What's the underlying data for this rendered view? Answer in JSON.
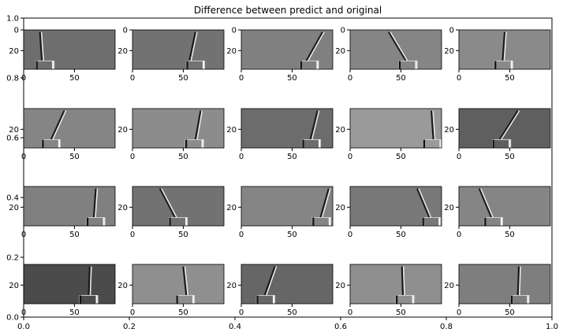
{
  "chart_data": {
    "type": "image_grid",
    "title": "Difference between predict and original",
    "outer_axes": {
      "x_ticks": [
        "0.0",
        "0.2",
        "0.4",
        "0.6",
        "0.8",
        "1.0"
      ],
      "y_ticks": [
        "0.0",
        "0.2",
        "0.4",
        "0.6",
        "0.8",
        "1.0"
      ],
      "xlim": [
        0,
        1
      ],
      "ylim": [
        0,
        1
      ]
    },
    "subplot_axes": {
      "x_ticks": [
        "0",
        "50"
      ],
      "y_ticks": [
        "0",
        "20"
      ],
      "y_ticks_top_row": [
        "0",
        "20"
      ],
      "y_ticks_lower_rows": [
        "20"
      ],
      "xlim": [
        0,
        90
      ],
      "ylim": [
        38,
        0
      ]
    },
    "rows": 4,
    "cols": 5,
    "panels": [
      {
        "bg": "#6e6e6e",
        "stick_base_x": 18,
        "stick_top_x": 16,
        "base_x": 12
      },
      {
        "bg": "#727272",
        "stick_base_x": 56,
        "stick_top_x": 62,
        "base_x": 53
      },
      {
        "bg": "#808080",
        "stick_base_x": 64,
        "stick_top_x": 80,
        "base_x": 58
      },
      {
        "bg": "#858585",
        "stick_base_x": 55,
        "stick_top_x": 38,
        "base_x": 48
      },
      {
        "bg": "#8a8a8a",
        "stick_base_x": 43,
        "stick_top_x": 45,
        "base_x": 35
      },
      {
        "bg": "#858585",
        "stick_base_x": 27,
        "stick_top_x": 40,
        "base_x": 18
      },
      {
        "bg": "#8c8c8c",
        "stick_base_x": 62,
        "stick_top_x": 67,
        "base_x": 52
      },
      {
        "bg": "#6c6c6c",
        "stick_base_x": 68,
        "stick_top_x": 75,
        "base_x": 60
      },
      {
        "bg": "#9a9a9a",
        "stick_base_x": 82,
        "stick_top_x": 80,
        "base_x": 72
      },
      {
        "bg": "#5f5f5f",
        "stick_base_x": 40,
        "stick_top_x": 58,
        "base_x": 33
      },
      {
        "bg": "#808080",
        "stick_base_x": 69,
        "stick_top_x": 71,
        "base_x": 62
      },
      {
        "bg": "#727272",
        "stick_base_x": 42,
        "stick_top_x": 27,
        "base_x": 36
      },
      {
        "bg": "#858585",
        "stick_base_x": 78,
        "stick_top_x": 86,
        "base_x": 70
      },
      {
        "bg": "#787878",
        "stick_base_x": 78,
        "stick_top_x": 66,
        "base_x": 71
      },
      {
        "bg": "#858585",
        "stick_base_x": 32,
        "stick_top_x": 20,
        "base_x": 25
      },
      {
        "bg": "#4b4b4b",
        "stick_base_x": 64,
        "stick_top_x": 65,
        "base_x": 55
      },
      {
        "bg": "#8f8f8f",
        "stick_base_x": 53,
        "stick_top_x": 50,
        "base_x": 43
      },
      {
        "bg": "#666666",
        "stick_base_x": 23,
        "stick_top_x": 33,
        "base_x": 15
      },
      {
        "bg": "#8f8f8f",
        "stick_base_x": 52,
        "stick_top_x": 51,
        "base_x": 45
      },
      {
        "bg": "#7e7e7e",
        "stick_base_x": 58,
        "stick_top_x": 59,
        "base_x": 51
      }
    ]
  }
}
